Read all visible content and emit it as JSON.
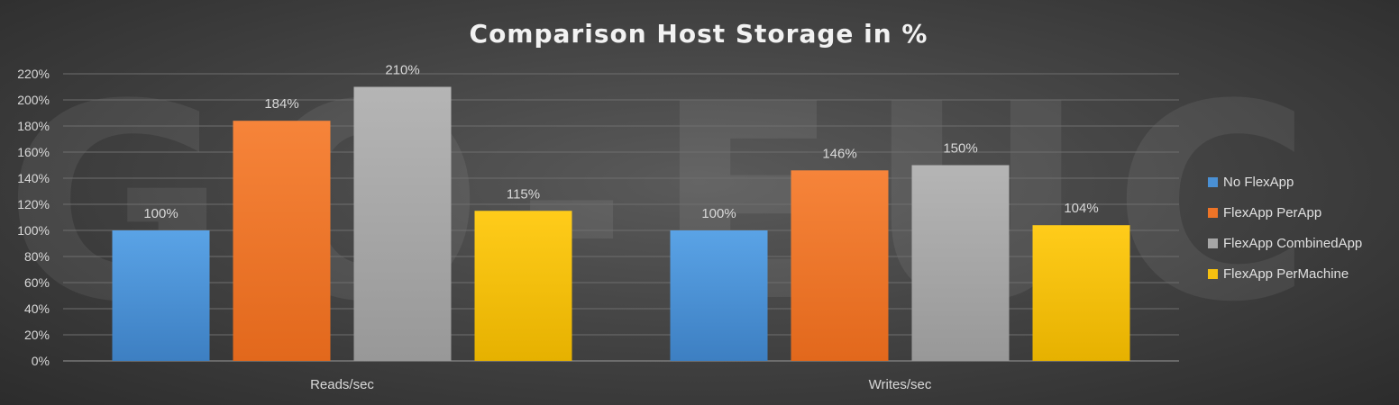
{
  "chart_data": {
    "type": "bar",
    "title": "Comparison Host Storage in %",
    "categories": [
      "Reads/sec",
      "Writes/sec"
    ],
    "series": [
      {
        "name": "No FlexApp",
        "values": [
          100,
          100
        ],
        "color": "#4a90d4",
        "labels": [
          "100%",
          "100%"
        ]
      },
      {
        "name": "FlexApp PerApp",
        "values": [
          184,
          146
        ],
        "color": "#ee7427",
        "labels": [
          "184%",
          "146%"
        ]
      },
      {
        "name": "FlexApp CombinedApp",
        "values": [
          210,
          150
        ],
        "color": "#a7a7a7",
        "labels": [
          "210%",
          "150%"
        ]
      },
      {
        "name": "FlexApp PerMachine",
        "values": [
          115,
          104
        ],
        "color": "#f5c010",
        "labels": [
          "115%",
          "104%"
        ]
      }
    ],
    "ylim": [
      0,
      220
    ],
    "yticks": [
      "0%",
      "20%",
      "40%",
      "60%",
      "80%",
      "100%",
      "120%",
      "140%",
      "160%",
      "180%",
      "200%",
      "220%"
    ],
    "grid": true,
    "legend_position": "right",
    "watermark": "GO-EUC"
  }
}
